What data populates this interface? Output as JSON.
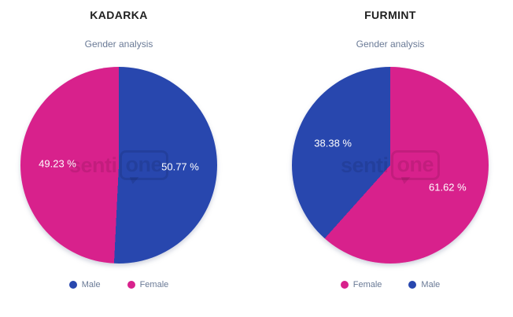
{
  "watermark": {
    "prefix": "senti",
    "boxed": "one"
  },
  "colors": {
    "male": "#2847AE",
    "female": "#D8218C",
    "title_text": "#1f1f1f",
    "subtitle_text": "#6a7a96",
    "legend_text": "#6a7a96",
    "data_label_text": "#ffffff"
  },
  "chart_data": [
    {
      "type": "pie",
      "title": "KADARKA",
      "subtitle": "Gender analysis",
      "labels": [
        "Male",
        "Female"
      ],
      "values": [
        50.77,
        49.23
      ],
      "data_labels": [
        "50.77 %",
        "49.23 %"
      ],
      "colors": [
        "#2847AE",
        "#D8218C"
      ],
      "start_angle_deg": 0,
      "direction": "clockwise",
      "legend_position": "bottom",
      "legend": [
        "Male",
        "Female"
      ]
    },
    {
      "type": "pie",
      "title": "FURMINT",
      "subtitle": "Gender analysis",
      "labels": [
        "Female",
        "Male"
      ],
      "values": [
        61.62,
        38.38
      ],
      "data_labels": [
        "61.62 %",
        "38.38 %"
      ],
      "colors": [
        "#D8218C",
        "#2847AE"
      ],
      "start_angle_deg": 0,
      "direction": "clockwise",
      "legend_position": "bottom",
      "legend": [
        "Female",
        "Male"
      ]
    }
  ]
}
